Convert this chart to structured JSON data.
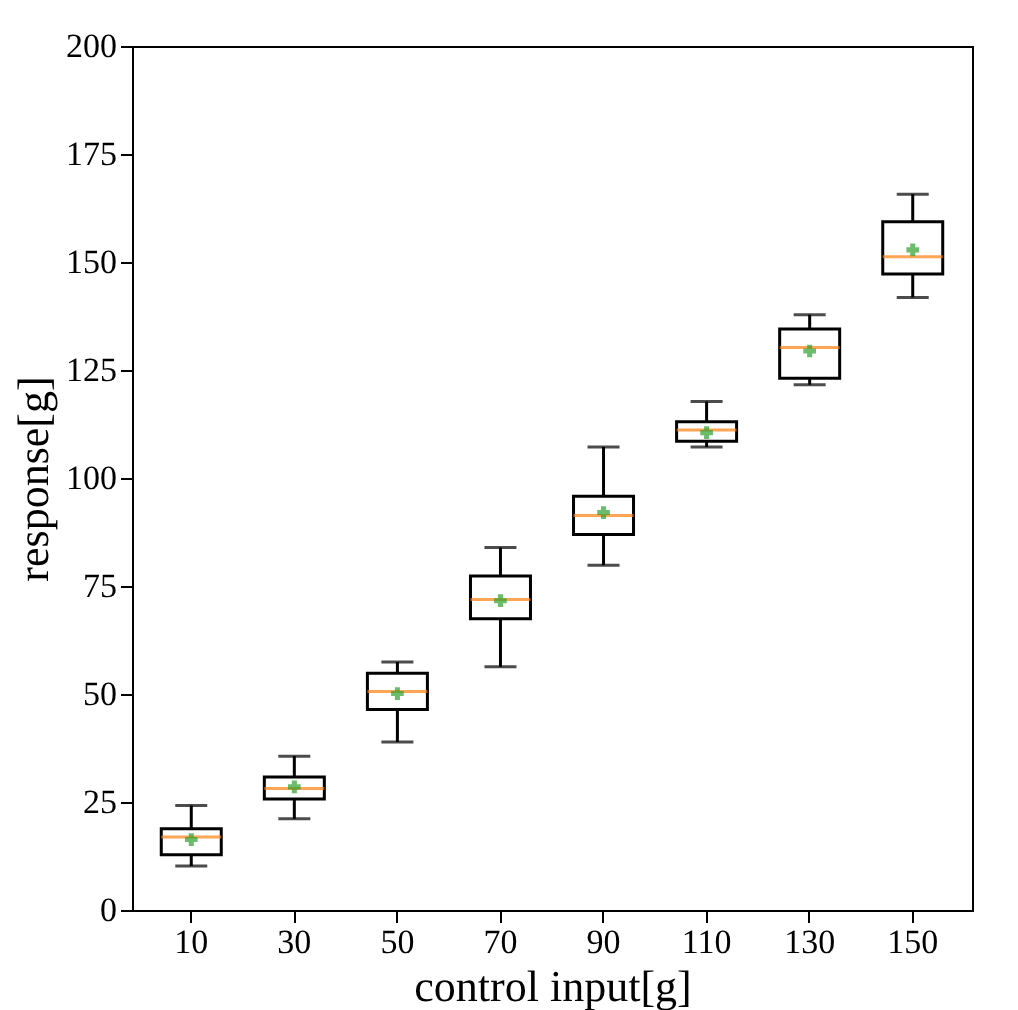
{
  "chart_data": {
    "type": "box",
    "xlabel": "control input[g]",
    "ylabel": "response[g]",
    "categories": [
      "10",
      "30",
      "50",
      "70",
      "90",
      "110",
      "130",
      "150"
    ],
    "ylim": [
      0,
      200
    ],
    "yticks": [
      0,
      25,
      50,
      75,
      100,
      125,
      150,
      175,
      200
    ],
    "grid": false,
    "boxes": [
      {
        "low": 10.2,
        "q1": 12.8,
        "median": 16.9,
        "q3": 18.8,
        "high": 24.2,
        "mean": 16.3
      },
      {
        "low": 21.1,
        "q1": 25.7,
        "median": 28.1,
        "q3": 30.8,
        "high": 35.6,
        "mean": 28.5
      },
      {
        "low": 38.9,
        "q1": 46.4,
        "median": 50.6,
        "q3": 54.8,
        "high": 57.4,
        "mean": 50.1
      },
      {
        "low": 56.3,
        "q1": 67.4,
        "median": 71.9,
        "q3": 77.3,
        "high": 83.9,
        "mean": 71.6
      },
      {
        "low": 79.8,
        "q1": 86.9,
        "median": 91.3,
        "q3": 95.8,
        "high": 107.2,
        "mean": 92
      },
      {
        "low": 107.2,
        "q1": 108.5,
        "median": 111.1,
        "q3": 113,
        "high": 117.7,
        "mean": 110.5
      },
      {
        "low": 121.6,
        "q1": 123.1,
        "median": 130.2,
        "q3": 134.5,
        "high": 137.8,
        "mean": 129.4
      },
      {
        "low": 141.8,
        "q1": 147.2,
        "median": 151.2,
        "q3": 159.3,
        "high": 165.7,
        "mean": 152.8
      }
    ]
  }
}
